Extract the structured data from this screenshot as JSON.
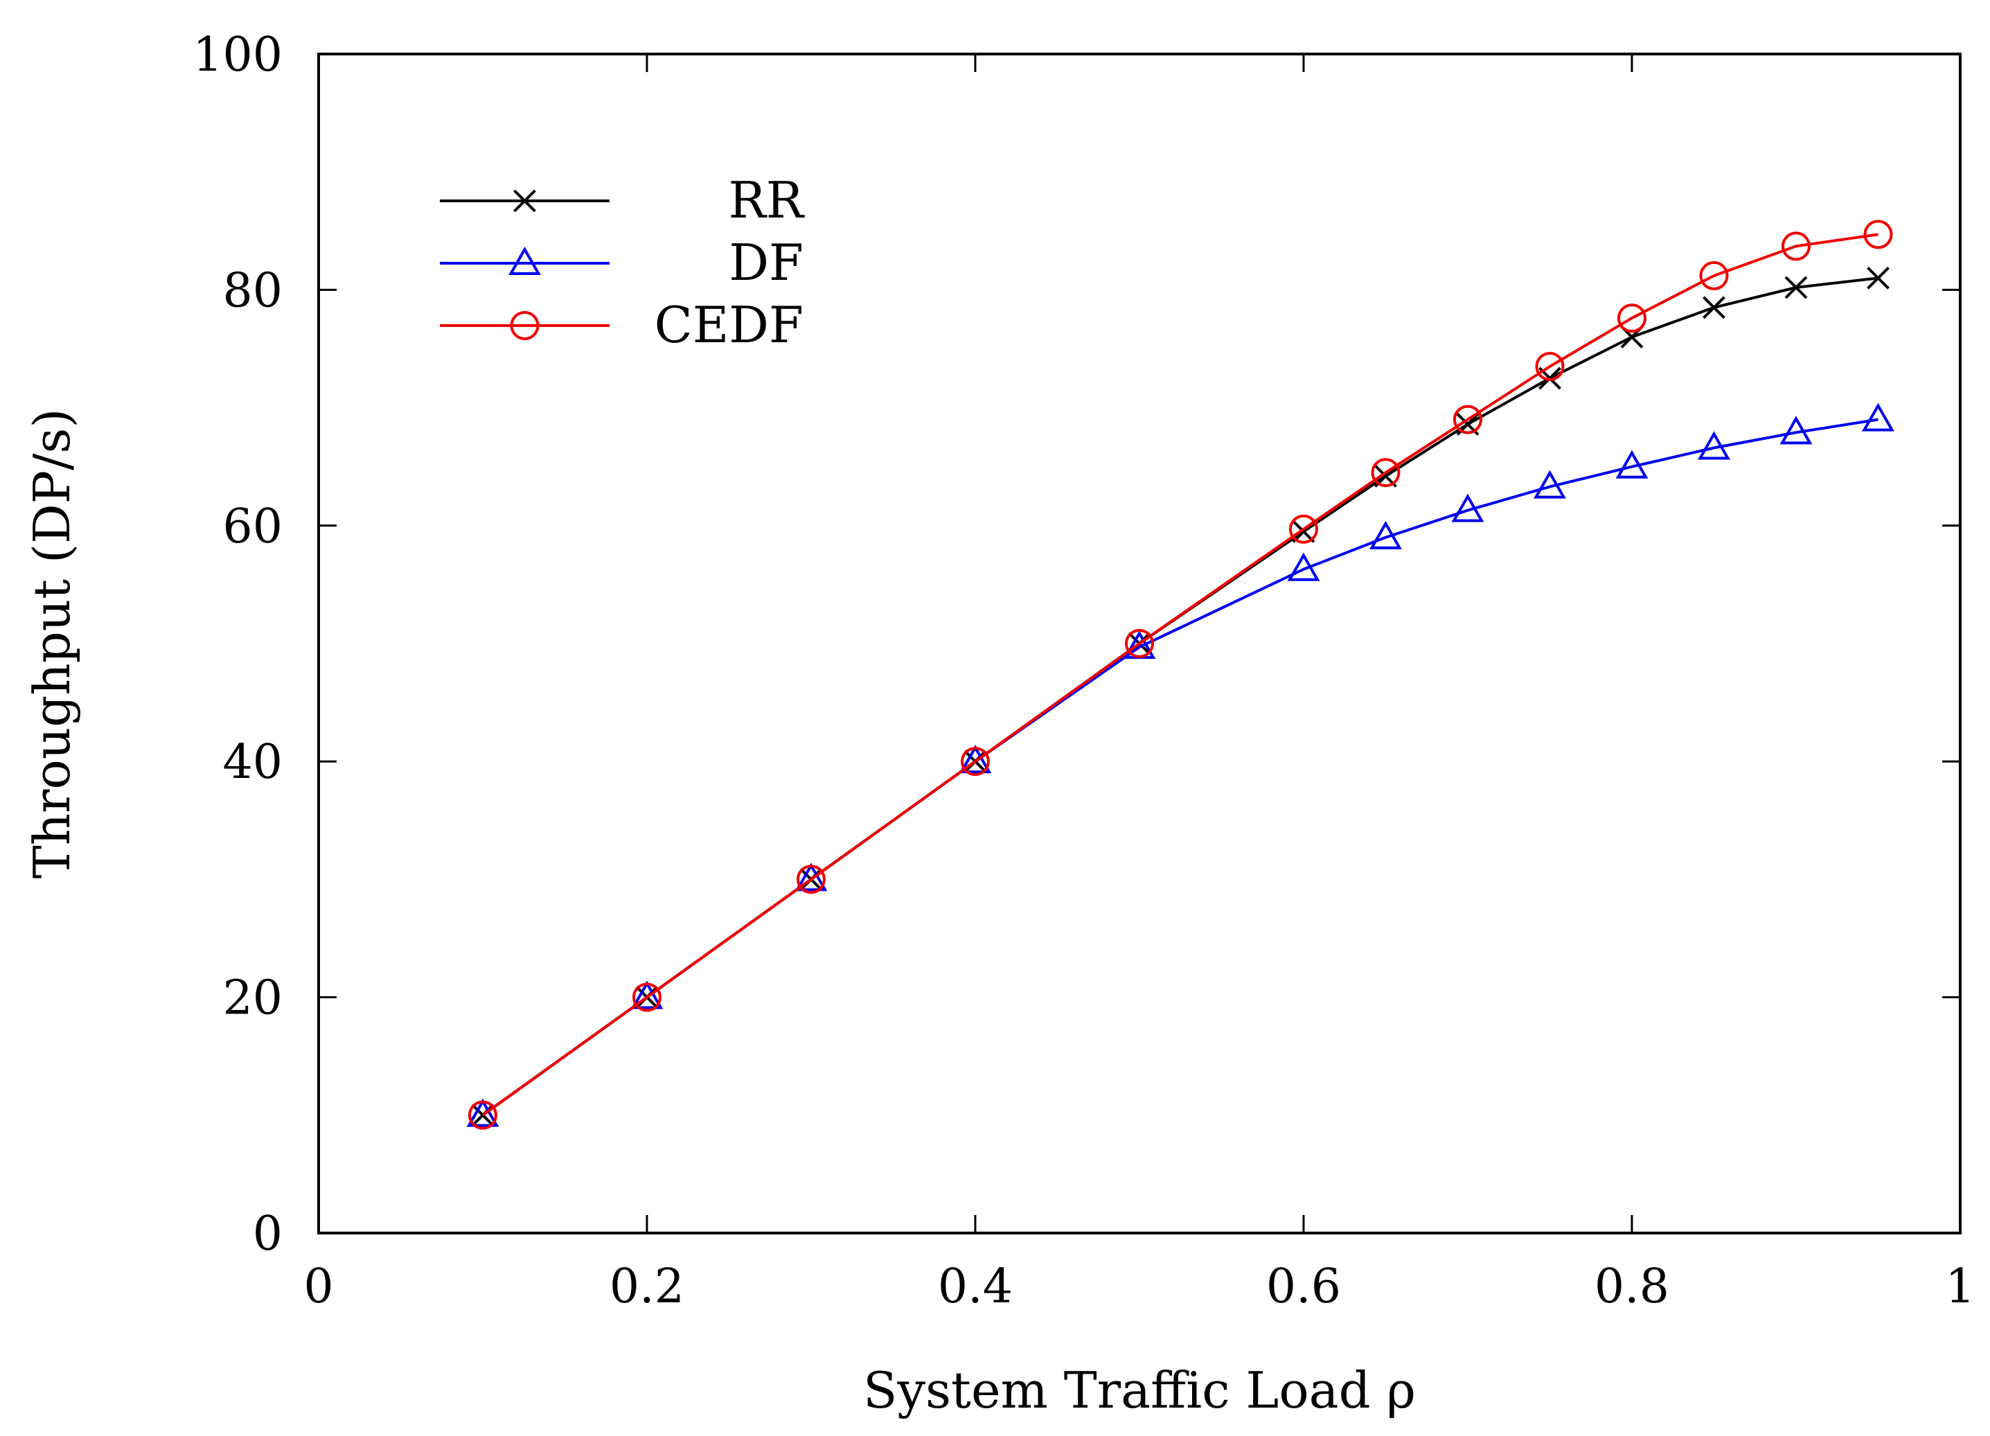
{
  "chart_data": {
    "type": "line",
    "title": "",
    "xlabel": "System Traffic Load ρ",
    "ylabel": "Throughput (DP/s)",
    "xlim": [
      0,
      1
    ],
    "ylim": [
      0,
      100
    ],
    "xticks": [
      0,
      0.2,
      0.4,
      0.6,
      0.8,
      1
    ],
    "xtick_labels": [
      "0",
      "0.2",
      "0.4",
      "0.6",
      "0.8",
      "1"
    ],
    "yticks": [
      0,
      20,
      40,
      60,
      80,
      100
    ],
    "ytick_labels": [
      "0",
      "20",
      "40",
      "60",
      "80",
      "100"
    ],
    "grid": false,
    "legend_position": "top-left",
    "x": [
      0.1,
      0.2,
      0.3,
      0.4,
      0.5,
      0.6,
      0.65,
      0.7,
      0.75,
      0.8,
      0.85,
      0.9,
      0.95
    ],
    "series": [
      {
        "name": "RR",
        "color": "#000000",
        "marker": "x",
        "values": [
          10,
          20,
          30,
          40,
          50,
          59.5,
          64.2,
          68.6,
          72.5,
          76.0,
          78.5,
          80.2,
          81.0
        ]
      },
      {
        "name": "DF",
        "color": "#0000ee",
        "marker": "triangle",
        "values": [
          10,
          20,
          30,
          40,
          49.7,
          56.3,
          59.0,
          61.3,
          63.3,
          65.0,
          66.6,
          67.9,
          69.0
        ]
      },
      {
        "name": "CEDF",
        "color": "#ee0000",
        "marker": "circle",
        "values": [
          10,
          20,
          30,
          40,
          50,
          59.7,
          64.5,
          69.0,
          73.5,
          77.6,
          81.2,
          83.7,
          84.7
        ]
      }
    ]
  }
}
